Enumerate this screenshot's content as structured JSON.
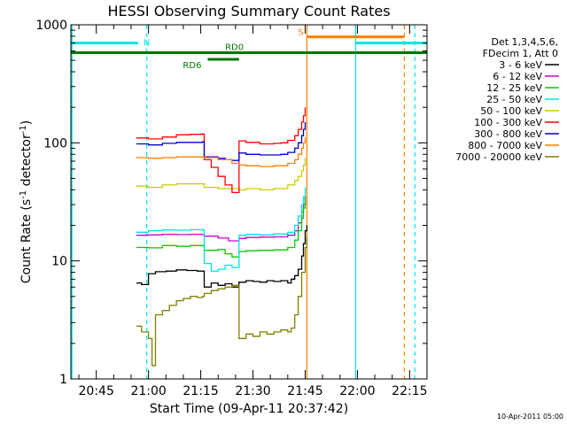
{
  "chart_data": {
    "type": "line",
    "title": "HESSI Observing Summary Count Rates",
    "xlabel": "Start Time (09-Apr-11 20:37:42)",
    "ylabel_parts": [
      "Count Rate (s",
      "-1",
      " detector",
      "-1",
      ")"
    ],
    "x_ticks": [
      "20:45",
      "21:00",
      "21:15",
      "21:30",
      "21:45",
      "22:00",
      "22:15"
    ],
    "x_tick_minutes": [
      45,
      60,
      75,
      90,
      105,
      120,
      135
    ],
    "x_range_minutes": [
      37.7,
      140
    ],
    "y_scale": "log",
    "y_ticks": [
      "1",
      "10",
      "100",
      "1000"
    ],
    "y_tick_values": [
      1,
      10,
      100,
      1000
    ],
    "ylim": [
      1,
      1000
    ],
    "footer_timestamp": "10-Apr-2011 05:00",
    "legend": {
      "header": [
        "Det 1,3,4,5,6,",
        "FDecim 1, Att 0"
      ],
      "placement": "right"
    },
    "series": [
      {
        "name": "3 - 6 keV",
        "color": "#000000",
        "points": [
          [
            56.5,
            6.5
          ],
          [
            58,
            6.3
          ],
          [
            60,
            7.8
          ],
          [
            62,
            8.1
          ],
          [
            65,
            8.2
          ],
          [
            68,
            8.4
          ],
          [
            71,
            8.3
          ],
          [
            74,
            8.2
          ],
          [
            75.5,
            8.2
          ],
          [
            76,
            6.0
          ],
          [
            78,
            6.5
          ],
          [
            80,
            6.2
          ],
          [
            82,
            6.4
          ],
          [
            84,
            6.0
          ],
          [
            86,
            6.6
          ],
          [
            88,
            6.8
          ],
          [
            90,
            6.7
          ],
          [
            92,
            6.6
          ],
          [
            94,
            6.8
          ],
          [
            96,
            6.7
          ],
          [
            98,
            6.8
          ],
          [
            100,
            6.5
          ],
          [
            101,
            7.0
          ],
          [
            102,
            7.5
          ],
          [
            103,
            8.5
          ],
          [
            104,
            11
          ],
          [
            104.5,
            14
          ],
          [
            105,
            18
          ],
          [
            105.5,
            20
          ]
        ]
      },
      {
        "name": "6 - 12 keV",
        "color": "#cc00cc",
        "points": [
          [
            56.5,
            16.5
          ],
          [
            60,
            16.6
          ],
          [
            64,
            16.8
          ],
          [
            68,
            16.7
          ],
          [
            72,
            16.8
          ],
          [
            75.5,
            16.7
          ],
          [
            76,
            16.2
          ],
          [
            80,
            15.6
          ],
          [
            83,
            14.8
          ],
          [
            86,
            15.5
          ],
          [
            88,
            15.8
          ],
          [
            92,
            15.9
          ],
          [
            96,
            16.0
          ],
          [
            100,
            16.5
          ],
          [
            102,
            18
          ],
          [
            103,
            21
          ],
          [
            104,
            26
          ],
          [
            104.5,
            30
          ],
          [
            105,
            36
          ]
        ]
      },
      {
        "name": "12 - 25 keV",
        "color": "#00cc00",
        "points": [
          [
            56.5,
            13.0
          ],
          [
            60,
            12.9
          ],
          [
            64,
            13.5
          ],
          [
            68,
            13.3
          ],
          [
            72,
            13.5
          ],
          [
            75.5,
            13.4
          ],
          [
            76,
            12.3
          ],
          [
            80,
            12.5
          ],
          [
            82,
            11.5
          ],
          [
            84,
            10.8
          ],
          [
            86,
            12.0
          ],
          [
            88,
            12.2
          ],
          [
            92,
            12.3
          ],
          [
            96,
            12.4
          ],
          [
            100,
            13.0
          ],
          [
            102,
            15
          ],
          [
            103,
            18
          ],
          [
            104,
            23
          ],
          [
            104.5,
            28
          ],
          [
            105,
            34
          ]
        ]
      },
      {
        "name": "25 - 50 keV",
        "color": "#00e5e5",
        "points": [
          [
            56.5,
            17.5
          ],
          [
            60,
            18.0
          ],
          [
            64,
            18.3
          ],
          [
            68,
            18.2
          ],
          [
            72,
            18.4
          ],
          [
            75.5,
            18.3
          ],
          [
            76,
            9.5
          ],
          [
            78,
            8.2
          ],
          [
            80,
            8.5
          ],
          [
            82,
            9.2
          ],
          [
            84,
            8.8
          ],
          [
            86,
            16.5
          ],
          [
            88,
            16.8
          ],
          [
            92,
            16.6
          ],
          [
            96,
            16.9
          ],
          [
            100,
            17.5
          ],
          [
            102,
            20
          ],
          [
            103,
            24
          ],
          [
            104,
            30
          ],
          [
            104.5,
            35
          ],
          [
            105,
            42
          ]
        ]
      },
      {
        "name": "50 - 100 keV",
        "color": "#cccc00",
        "points": [
          [
            56.5,
            43
          ],
          [
            60,
            42
          ],
          [
            64,
            44
          ],
          [
            68,
            45
          ],
          [
            72,
            45
          ],
          [
            75.5,
            45
          ],
          [
            76,
            42
          ],
          [
            80,
            41
          ],
          [
            84,
            41
          ],
          [
            86,
            40
          ],
          [
            88,
            41
          ],
          [
            92,
            40
          ],
          [
            96,
            41
          ],
          [
            100,
            44
          ],
          [
            102,
            48
          ],
          [
            103,
            52
          ],
          [
            104,
            58
          ],
          [
            104.5,
            65
          ],
          [
            105,
            75
          ]
        ]
      },
      {
        "name": "100 - 300 keV",
        "color": "#ff0000",
        "points": [
          [
            56.5,
            110
          ],
          [
            60,
            108
          ],
          [
            64,
            112
          ],
          [
            68,
            117
          ],
          [
            72,
            118
          ],
          [
            75.5,
            119
          ],
          [
            76,
            72
          ],
          [
            78,
            62
          ],
          [
            80,
            52
          ],
          [
            82,
            44
          ],
          [
            84,
            38
          ],
          [
            86,
            104
          ],
          [
            88,
            101
          ],
          [
            92,
            98
          ],
          [
            96,
            99
          ],
          [
            98,
            100
          ],
          [
            100,
            105
          ],
          [
            102,
            115
          ],
          [
            103,
            130
          ],
          [
            104,
            150
          ],
          [
            104.5,
            170
          ],
          [
            105,
            200
          ]
        ]
      },
      {
        "name": "300 - 800 keV",
        "color": "#0000cc",
        "points": [
          [
            56.5,
            98
          ],
          [
            60,
            96
          ],
          [
            64,
            99
          ],
          [
            68,
            101
          ],
          [
            72,
            101
          ],
          [
            75.5,
            102
          ],
          [
            76,
            76
          ],
          [
            80,
            74
          ],
          [
            82,
            72
          ],
          [
            84,
            71
          ],
          [
            86,
            82
          ],
          [
            88,
            80
          ],
          [
            92,
            79
          ],
          [
            96,
            79
          ],
          [
            98,
            80
          ],
          [
            100,
            83
          ],
          [
            102,
            90
          ],
          [
            103,
            100
          ],
          [
            104,
            115
          ],
          [
            104.5,
            130
          ],
          [
            105,
            150
          ]
        ]
      },
      {
        "name": "800 - 7000 keV",
        "color": "#ff8000",
        "points": [
          [
            56.5,
            75
          ],
          [
            60,
            74
          ],
          [
            64,
            75
          ],
          [
            68,
            76
          ],
          [
            72,
            76
          ],
          [
            75.5,
            76
          ],
          [
            76,
            75
          ],
          [
            80,
            72
          ],
          [
            84,
            67
          ],
          [
            86,
            65
          ],
          [
            88,
            64
          ],
          [
            92,
            63
          ],
          [
            96,
            64
          ],
          [
            100,
            67
          ],
          [
            102,
            72
          ],
          [
            103,
            80
          ],
          [
            104,
            90
          ],
          [
            104.5,
            100
          ],
          [
            105,
            112
          ]
        ]
      },
      {
        "name": "7000 - 20000 keV",
        "color": "#808000",
        "points": [
          [
            56.5,
            2.8
          ],
          [
            58,
            2.5
          ],
          [
            60,
            2.2
          ],
          [
            61,
            1.3
          ],
          [
            62,
            3.5
          ],
          [
            64,
            3.8
          ],
          [
            66,
            4.2
          ],
          [
            68,
            4.6
          ],
          [
            70,
            4.8
          ],
          [
            72,
            5.0
          ],
          [
            74,
            4.9
          ],
          [
            75.5,
            5.0
          ],
          [
            76,
            5.3
          ],
          [
            78,
            5.6
          ],
          [
            80,
            5.8
          ],
          [
            82,
            6.0
          ],
          [
            84,
            6.2
          ],
          [
            86,
            2.2
          ],
          [
            88,
            2.4
          ],
          [
            90,
            2.3
          ],
          [
            92,
            2.5
          ],
          [
            94,
            2.4
          ],
          [
            96,
            2.5
          ],
          [
            98,
            2.6
          ],
          [
            100,
            2.5
          ],
          [
            101,
            2.7
          ],
          [
            102,
            3.5
          ],
          [
            103,
            5.0
          ],
          [
            104,
            8.0
          ],
          [
            105,
            13
          ],
          [
            105.5,
            16
          ]
        ]
      }
    ],
    "flag_bars": [
      {
        "label": "N",
        "color": "#00e5e5",
        "x_start": 37.7,
        "x_end": 57,
        "y": 700,
        "dashed_end": true
      },
      {
        "label": "",
        "color": "#00e5e5",
        "x_start": 119.5,
        "x_end": 140,
        "y": 700,
        "dashed_end": false
      },
      {
        "label": "S",
        "color": "#ff8000",
        "x_start": 105.5,
        "x_end": 133.5,
        "y": 790,
        "dashed_end": false
      },
      {
        "label": "RD0",
        "color": "#007700",
        "x_start": 37.7,
        "x_end": 140,
        "y": 580,
        "dashed_end": false
      },
      {
        "label": "RD6",
        "color": "#007700",
        "x_start": 77,
        "x_end": 86,
        "y": 510,
        "dashed_end": false
      }
    ],
    "vertical_markers": [
      {
        "x": 38,
        "color": "#00e5e5",
        "style": "solid"
      },
      {
        "x": 59.5,
        "color": "#00e5e5",
        "style": "dashed"
      },
      {
        "x": 105.5,
        "color": "#ff8000",
        "style": "solid"
      },
      {
        "x": 119.5,
        "color": "#00e5e5",
        "style": "solid"
      },
      {
        "x": 133.5,
        "color": "#ff8000",
        "style": "dashed"
      },
      {
        "x": 136.5,
        "color": "#00e5e5",
        "style": "dashed"
      }
    ]
  }
}
